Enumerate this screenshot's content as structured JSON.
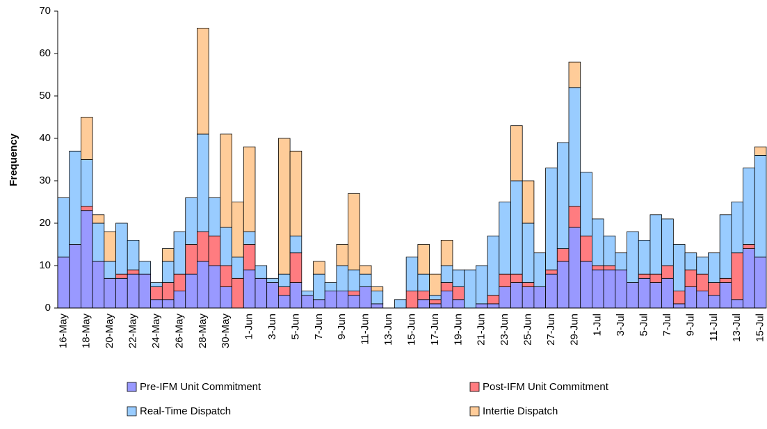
{
  "chart_data": {
    "type": "stacked_bar",
    "y_label": "Frequency",
    "categories": [
      "16-May",
      null,
      "18-May",
      null,
      "20-May",
      null,
      "22-May",
      null,
      "24-May",
      null,
      "26-May",
      null,
      "28-May",
      null,
      "30-May",
      null,
      "1-Jun",
      null,
      "3-Jun",
      null,
      "5-Jun",
      null,
      "7-Jun",
      null,
      "9-Jun",
      null,
      "11-Jun",
      null,
      "13-Jun",
      null,
      "15-Jun",
      null,
      "17-Jun",
      null,
      "19-Jun",
      null,
      "21-Jun",
      null,
      "23-Jun",
      null,
      "25-Jun",
      null,
      "27-Jun",
      null,
      "29-Jun",
      null,
      "1-Jul",
      null,
      "3-Jul",
      null,
      "5-Jul",
      null,
      "7-Jul",
      null,
      "9-Jul",
      null,
      "11-Jul",
      null,
      "13-Jul",
      null,
      "15-Jul"
    ],
    "series": [
      {
        "name": "Pre-IFM Unit Commitment",
        "color": "#9999ff",
        "values": [
          12,
          15,
          23,
          11,
          7,
          7,
          8,
          8,
          2,
          2,
          4,
          8,
          11,
          10,
          5,
          0,
          9,
          7,
          6,
          3,
          6,
          3,
          2,
          4,
          4,
          3,
          5,
          1,
          0,
          0,
          0,
          2,
          1,
          4,
          2,
          0,
          1,
          1,
          5,
          6,
          5,
          5,
          8,
          11,
          19,
          11,
          9,
          9,
          9,
          6,
          7,
          6,
          7,
          1,
          5,
          4,
          3,
          6,
          2,
          14,
          12
        ]
      },
      {
        "name": "Post-IFM Unit Commitment",
        "color": "#ff7c80",
        "values": [
          0,
          0,
          1,
          0,
          0,
          1,
          1,
          0,
          3,
          4,
          4,
          7,
          7,
          7,
          5,
          7,
          6,
          0,
          0,
          2,
          7,
          0,
          0,
          0,
          0,
          1,
          0,
          0,
          0,
          0,
          4,
          2,
          1,
          2,
          3,
          0,
          0,
          2,
          3,
          2,
          1,
          0,
          1,
          3,
          5,
          6,
          1,
          1,
          0,
          0,
          1,
          2,
          3,
          3,
          4,
          4,
          3,
          1,
          11,
          1,
          0
        ]
      },
      {
        "name": "Real-Time Dispatch",
        "color": "#99ccff",
        "values": [
          14,
          22,
          11,
          9,
          4,
          12,
          7,
          3,
          1,
          5,
          10,
          11,
          23,
          9,
          9,
          5,
          3,
          3,
          1,
          3,
          4,
          1,
          6,
          2,
          6,
          5,
          3,
          3,
          0,
          2,
          8,
          4,
          1,
          4,
          4,
          9,
          9,
          14,
          17,
          22,
          14,
          8,
          24,
          25,
          28,
          15,
          11,
          7,
          4,
          12,
          8,
          14,
          11,
          11,
          4,
          4,
          7,
          15,
          12,
          18,
          24
        ]
      },
      {
        "name": "Intertie Dispatch",
        "color": "#ffcc99",
        "values": [
          0,
          0,
          10,
          2,
          7,
          0,
          0,
          0,
          0,
          3,
          0,
          0,
          25,
          0,
          22,
          13,
          20,
          0,
          0,
          32,
          20,
          0,
          3,
          0,
          5,
          18,
          2,
          1,
          0,
          0,
          0,
          7,
          5,
          6,
          0,
          0,
          0,
          0,
          0,
          13,
          10,
          0,
          0,
          0,
          6,
          0,
          0,
          0,
          0,
          0,
          0,
          0,
          0,
          0,
          0,
          0,
          0,
          0,
          0,
          0,
          2
        ]
      }
    ],
    "ylim": [
      0,
      70
    ],
    "yticks": [
      0,
      10,
      20,
      30,
      40,
      50,
      60,
      70
    ],
    "grid": false,
    "legend": "bottom"
  }
}
